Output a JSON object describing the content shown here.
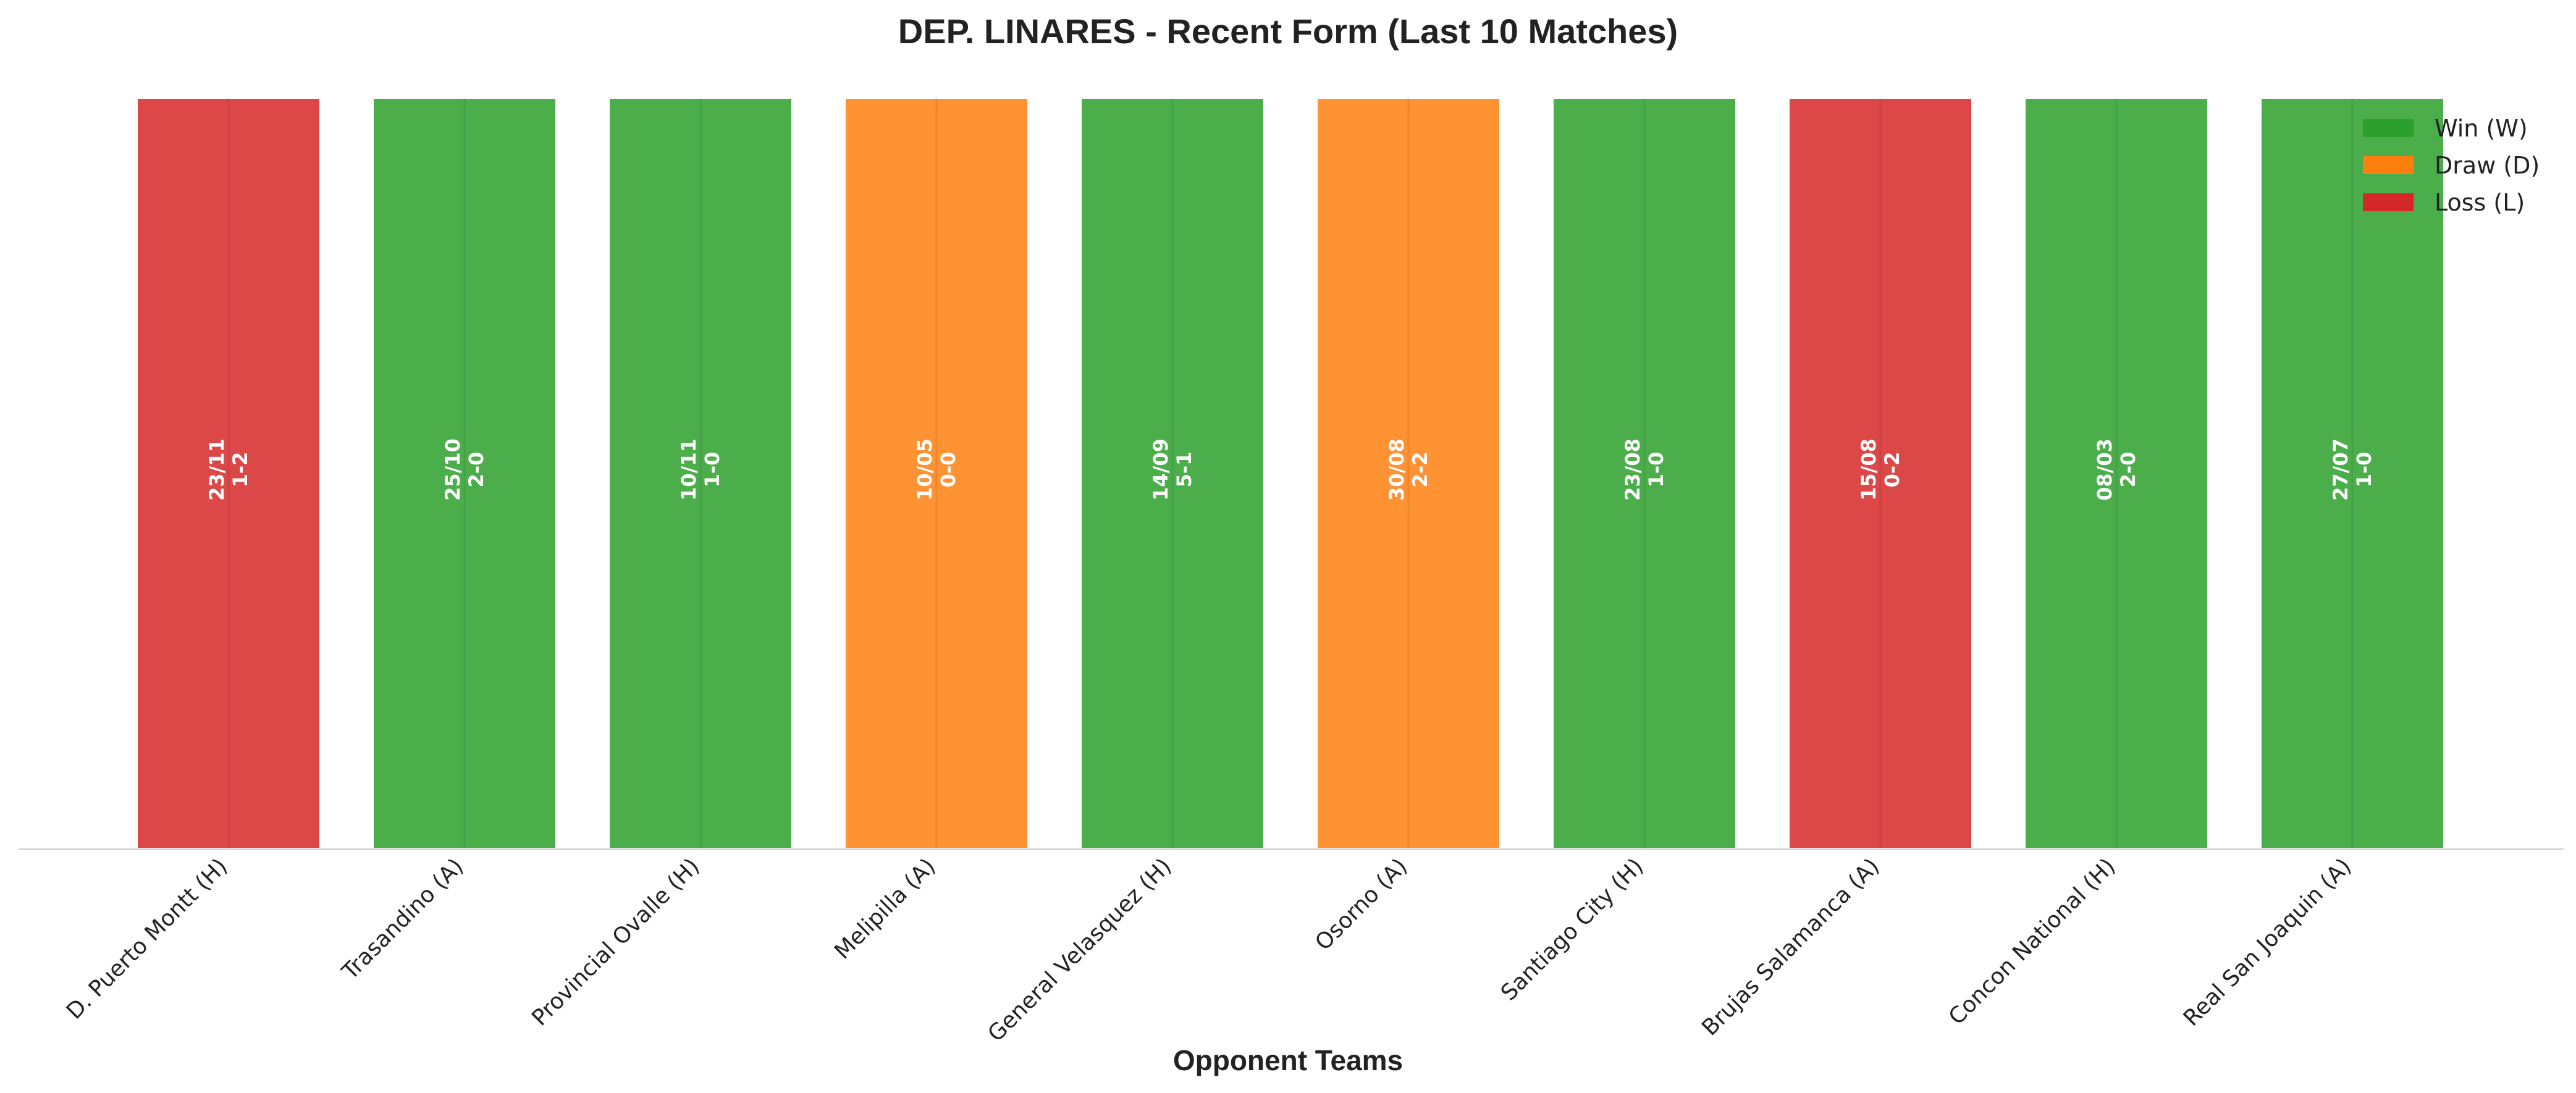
{
  "chart_data": {
    "type": "bar",
    "title": "DEP. LINARES - Recent Form (Last 10 Matches)",
    "xlabel": "Opponent Teams",
    "ylabel": "",
    "ylim": [
      0,
      1
    ],
    "grid": false,
    "legend_position": "top-right",
    "categories": [
      "D. Puerto Montt (H)",
      "Trasandino (A)",
      "Provincial Ovalle (H)",
      "Melipilla (A)",
      "General Velasquez (H)",
      "Osorno (A)",
      "Santiago City (H)",
      "Brujas Salamanca (A)",
      "Concon National (H)",
      "Real San Joaquin (A)"
    ],
    "values": [
      1,
      1,
      1,
      1,
      1,
      1,
      1,
      1,
      1,
      1
    ],
    "results": [
      "L",
      "W",
      "W",
      "D",
      "W",
      "D",
      "W",
      "L",
      "W",
      "W"
    ],
    "dates": [
      "23/11",
      "25/10",
      "10/11",
      "10/05",
      "14/09",
      "30/08",
      "23/08",
      "15/08",
      "08/03",
      "27/07"
    ],
    "scores": [
      "1-2",
      "2-0",
      "1-0",
      "0-0",
      "5-1",
      "2-2",
      "1-0",
      "0-2",
      "2-0",
      "1-0"
    ],
    "legend": [
      {
        "key": "W",
        "label": "Win (W)",
        "color": "#2ca02c"
      },
      {
        "key": "D",
        "label": "Draw (D)",
        "color": "#ff7f0e"
      },
      {
        "key": "L",
        "label": "Loss (L)",
        "color": "#d62728"
      }
    ]
  }
}
